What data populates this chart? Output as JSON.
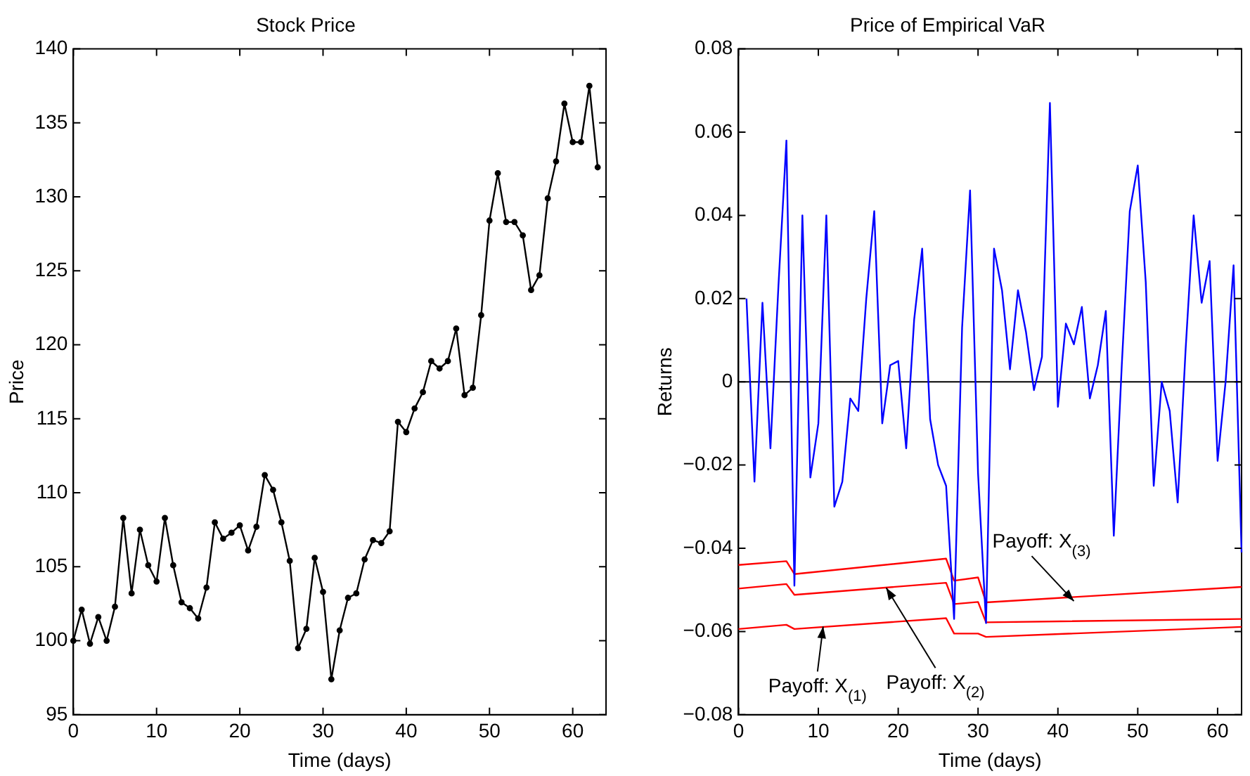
{
  "chart_data": [
    {
      "type": "line",
      "title": "Stock Price",
      "xlabel": "Time (days)",
      "ylabel": "Price",
      "color": "#000000",
      "marker": "circle",
      "grid": false,
      "x": [
        0,
        1,
        2,
        3,
        4,
        5,
        6,
        7,
        8,
        9,
        10,
        11,
        12,
        13,
        14,
        15,
        16,
        17,
        18,
        19,
        20,
        21,
        22,
        23,
        24,
        25,
        26,
        27,
        28,
        29,
        30,
        31,
        32,
        33,
        34,
        35,
        36,
        37,
        38,
        39,
        40,
        41,
        42,
        43,
        44,
        45,
        46,
        47,
        48,
        49,
        50,
        51,
        52,
        53,
        54,
        55,
        56,
        57,
        58,
        59,
        60,
        61,
        62,
        63
      ],
      "values": [
        100,
        102.1,
        99.8,
        101.6,
        100,
        102.3,
        108.3,
        103.2,
        107.5,
        105.1,
        104,
        108.3,
        105.1,
        102.6,
        102.2,
        101.5,
        103.6,
        108,
        106.9,
        107.3,
        107.8,
        106.1,
        107.7,
        111.2,
        110.2,
        108,
        105.4,
        99.5,
        100.8,
        105.6,
        103.3,
        97.4,
        100.7,
        102.9,
        103.2,
        105.5,
        106.8,
        106.6,
        107.4,
        114.8,
        114.1,
        115.7,
        116.8,
        118.9,
        118.4,
        118.9,
        121.1,
        116.6,
        117.1,
        122,
        128.4,
        131.6,
        128.3,
        128.3,
        127.4,
        123.7,
        124.7,
        129.9,
        132.4,
        136.3,
        133.7,
        133.7,
        137.5,
        132
      ],
      "xlim": [
        0,
        64
      ],
      "xticks": [
        0,
        10,
        20,
        30,
        40,
        50,
        60
      ],
      "ylim": [
        95,
        140
      ],
      "yticks": [
        95,
        100,
        105,
        110,
        115,
        120,
        125,
        130,
        135,
        140
      ]
    },
    {
      "type": "line",
      "title": "Price of Empirical VaR",
      "xlabel": "Time (days)",
      "ylabel": "Returns",
      "marker": "none",
      "grid": false,
      "xlim": [
        0,
        63
      ],
      "xticks": [
        0,
        10,
        20,
        30,
        40,
        50,
        60
      ],
      "ylim": [
        -0.08,
        0.08
      ],
      "yticks": [
        -0.08,
        -0.06,
        -0.04,
        -0.02,
        0,
        0.02,
        0.04,
        0.06,
        0.08
      ],
      "ref_lines": [
        {
          "axis": "y",
          "value": 0,
          "color": "#000000"
        }
      ],
      "series": [
        {
          "color": "#0000ff",
          "x": [
            1,
            2,
            3,
            4,
            5,
            6,
            7,
            8,
            9,
            10,
            11,
            12,
            13,
            14,
            15,
            16,
            17,
            18,
            19,
            20,
            21,
            22,
            23,
            24,
            25,
            26,
            27,
            28,
            29,
            30,
            31,
            32,
            33,
            34,
            35,
            36,
            37,
            38,
            39,
            40,
            41,
            42,
            43,
            44,
            45,
            46,
            47,
            48,
            49,
            50,
            51,
            52,
            53,
            54,
            55,
            56,
            57,
            58,
            59,
            60,
            61,
            62,
            63
          ],
          "values": [
            0.02,
            -0.024,
            0.019,
            -0.016,
            0.023,
            0.058,
            -0.049,
            0.04,
            -0.023,
            -0.01,
            0.04,
            -0.03,
            -0.024,
            -0.004,
            -0.007,
            0.02,
            0.041,
            -0.01,
            0.004,
            0.005,
            -0.016,
            0.015,
            0.032,
            -0.009,
            -0.02,
            -0.025,
            -0.057,
            0.013,
            0.046,
            -0.022,
            -0.058,
            0.032,
            0.022,
            0.003,
            0.022,
            0.012,
            -0.002,
            0.006,
            0.067,
            -0.006,
            0.014,
            0.009,
            0.018,
            -0.004,
            0.004,
            0.017,
            -0.037,
            0.004,
            0.041,
            0.052,
            0.024,
            -0.025,
            0,
            -0.007,
            -0.029,
            0.008,
            0.04,
            0.019,
            0.029,
            -0.019,
            0,
            0.028,
            -0.041
          ]
        },
        {
          "color": "#ff0000",
          "x": [
            0,
            6,
            7,
            26,
            27,
            30,
            31,
            63
          ],
          "values": [
            -0.044,
            -0.0431,
            -0.0462,
            -0.0425,
            -0.0478,
            -0.047,
            -0.053,
            -0.0493
          ]
        },
        {
          "color": "#ff0000",
          "x": [
            0,
            6,
            7,
            26,
            27,
            30,
            31,
            63
          ],
          "values": [
            -0.0497,
            -0.0486,
            -0.0512,
            -0.0483,
            -0.0534,
            -0.0529,
            -0.0578,
            -0.057
          ]
        },
        {
          "color": "#ff0000",
          "x": [
            0,
            6,
            7,
            26,
            27,
            30,
            31,
            63
          ],
          "values": [
            -0.0594,
            -0.0584,
            -0.0594,
            -0.0568,
            -0.0605,
            -0.0605,
            -0.0613,
            -0.0589
          ]
        }
      ],
      "annotations": [
        {
          "text": "Payoff: X$_{(1)}$",
          "x": 10.6,
          "y": -0.0588
        },
        {
          "text": "Payoff: X$_{(2)}$",
          "x": 18.5,
          "y": -0.0495
        },
        {
          "text": "Payoff: X$_{(3)}$",
          "x": 42,
          "y": -0.0527
        }
      ]
    }
  ]
}
